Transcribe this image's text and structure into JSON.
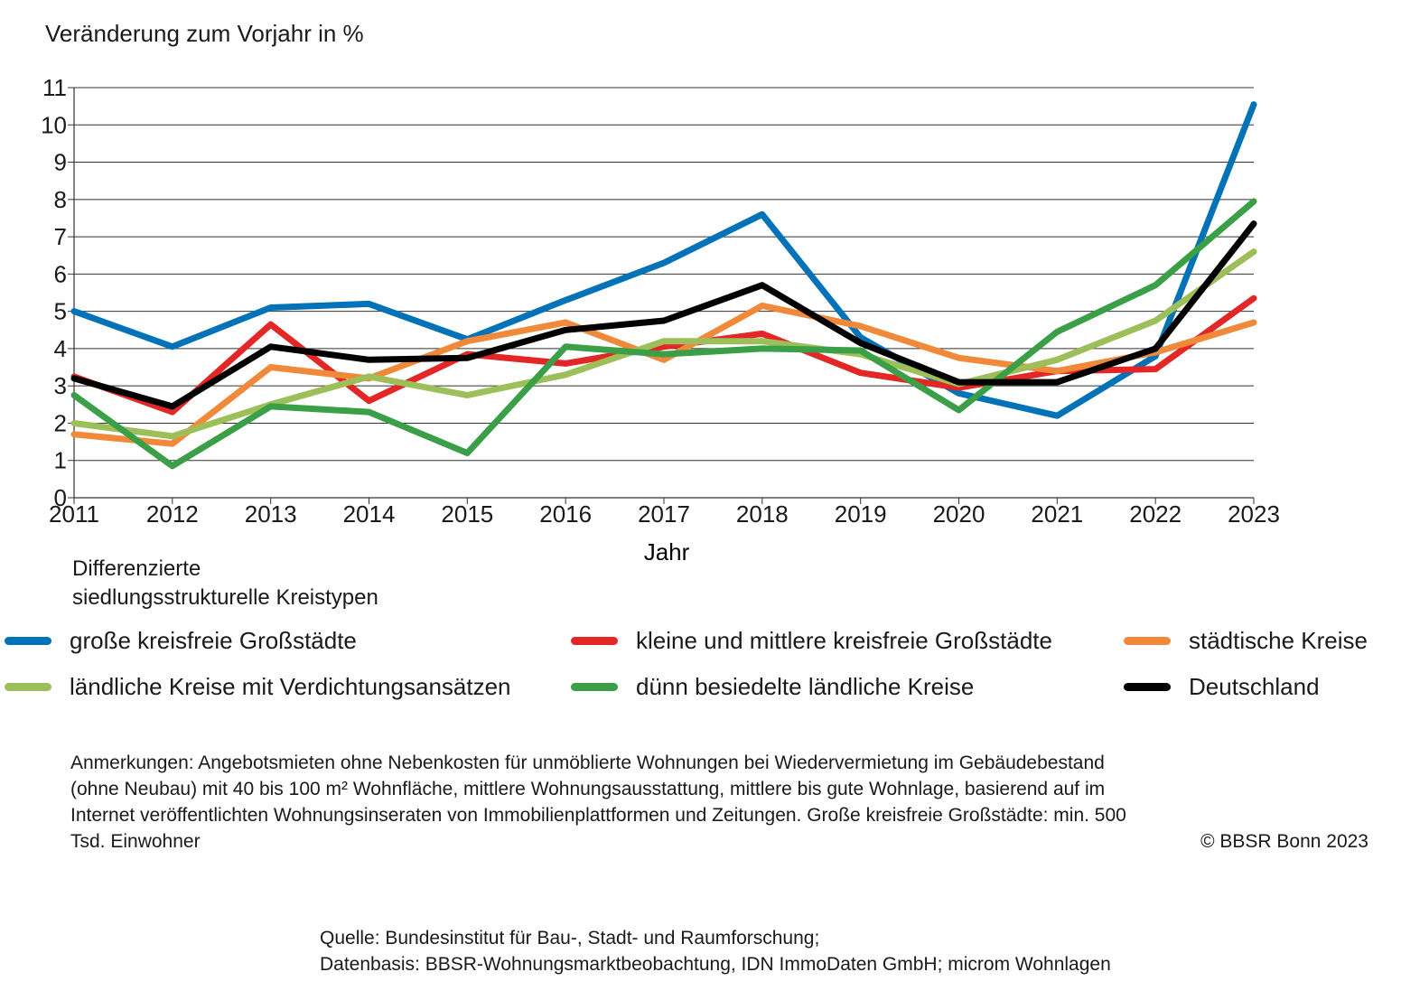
{
  "ylabel": "Veränderung zum Vorjahr in %",
  "legend_heading": [
    "Differenzierte",
    "siedlungsstrukturelle Kreistypen"
  ],
  "notes": "Anmerkungen: Angebotsmieten ohne Nebenkosten für unmöblierte Wohnungen bei Wiedervermietung im Gebäudebestand (ohne Neubau) mit 40 bis 100 m² Wohnfläche, mittlere Wohnungsausstattung, mittlere bis gute Wohnlage, basierend auf im Internet veröffentlichten Wohnungsinseraten von Immobilienplattformen und Zeitungen. Große kreisfreie Großstädte: min. 500 Tsd. Einwohner",
  "copyright": "© BBSR Bonn 2023",
  "source": [
    "Quelle: Bundesinstitut für Bau-, Stadt- und Raumforschung;",
    "Datenbasis: BBSR-Wohnungsmarktbeobachtung, IDN ImmoDaten GmbH; microm Wohnlagen"
  ],
  "chart_data": {
    "type": "line",
    "title": "",
    "xlabel": "Jahr",
    "ylabel": "Veränderung zum Vorjahr in %",
    "x": [
      2011,
      2012,
      2013,
      2014,
      2015,
      2016,
      2017,
      2018,
      2019,
      2020,
      2021,
      2022,
      2023
    ],
    "ylim": [
      0,
      11
    ],
    "yticks": [
      0,
      1,
      2,
      3,
      4,
      5,
      6,
      7,
      8,
      9,
      10,
      11
    ],
    "grid": "horizontal",
    "legend_position": "bottom",
    "series": [
      {
        "name": "große kreisfreie Großstädte",
        "color": "#0072b8",
        "values": [
          5.0,
          4.05,
          5.1,
          5.2,
          4.25,
          5.3,
          6.3,
          7.6,
          4.3,
          2.8,
          2.2,
          3.8,
          10.55
        ]
      },
      {
        "name": "kleine und mittlere kreisfreie Großstädte",
        "color": "#e32726",
        "values": [
          3.25,
          2.3,
          4.65,
          2.6,
          3.85,
          3.6,
          4.05,
          4.4,
          3.35,
          2.95,
          3.4,
          3.45,
          5.35
        ]
      },
      {
        "name": "städtische Kreise",
        "color": "#f08a3a",
        "values": [
          1.7,
          1.45,
          3.5,
          3.2,
          4.2,
          4.7,
          3.7,
          5.15,
          4.6,
          3.75,
          3.4,
          3.9,
          4.7
        ]
      },
      {
        "name": "ländliche Kreise mit Verdichtungsansätzen",
        "color": "#9cbf5a",
        "values": [
          2.0,
          1.65,
          2.5,
          3.25,
          2.75,
          3.3,
          4.2,
          4.2,
          3.85,
          3.05,
          3.7,
          4.75,
          6.6
        ]
      },
      {
        "name": "dünn besiedelte ländliche Kreise",
        "color": "#3a9f47",
        "values": [
          2.75,
          0.85,
          2.45,
          2.3,
          1.2,
          4.05,
          3.85,
          4.0,
          3.95,
          2.35,
          4.45,
          5.7,
          7.95
        ]
      },
      {
        "name": "Deutschland",
        "color": "#000000",
        "values": [
          3.2,
          2.45,
          4.05,
          3.7,
          3.75,
          4.5,
          4.75,
          5.7,
          4.15,
          3.1,
          3.1,
          4.0,
          7.35
        ]
      }
    ]
  }
}
